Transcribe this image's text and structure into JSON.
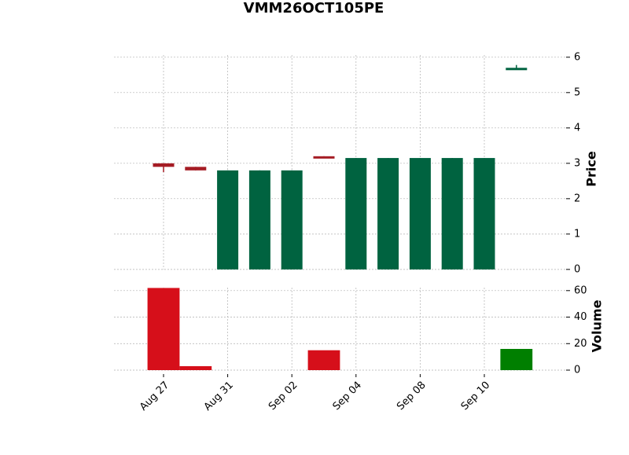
{
  "chart_data": [
    {
      "type": "candlestick",
      "title": "VMM26OCT105PE",
      "ylabel": "Price",
      "x": [
        "Aug 27",
        null,
        "Aug 31",
        null,
        "Sep 02",
        null,
        "Sep 04",
        null,
        "Sep 08",
        null,
        "Sep 10",
        null
      ],
      "open": [
        3.0,
        2.9,
        0,
        0,
        0,
        3.2,
        0,
        0,
        0,
        0,
        0,
        5.65
      ],
      "high": [
        3.0,
        2.9,
        2.8,
        2.8,
        2.8,
        3.2,
        3.15,
        3.15,
        3.15,
        3.15,
        3.15,
        5.78
      ],
      "low": [
        2.75,
        2.8,
        0,
        0,
        0,
        3.15,
        0,
        0,
        0,
        0,
        0,
        5.65
      ],
      "close": [
        2.9,
        2.8,
        2.8,
        2.8,
        2.8,
        3.15,
        3.15,
        3.15,
        3.15,
        3.15,
        3.15,
        5.7
      ],
      "up_color": "#006340",
      "down_color": "#a51c24",
      "ylim": [
        -0.27,
        6.24
      ],
      "yticks": [
        0,
        1,
        2,
        3,
        4,
        5,
        6
      ],
      "grid": true
    },
    {
      "type": "bar",
      "ylabel": "Volume",
      "values": [
        62,
        3,
        0,
        0,
        0,
        15,
        0,
        0,
        0,
        0,
        0,
        16
      ],
      "up_color": "#007f00",
      "down_color": "#d60f1a",
      "ylim": [
        0,
        67
      ],
      "yticks": [
        0,
        20,
        40,
        60
      ],
      "grid": true
    }
  ]
}
